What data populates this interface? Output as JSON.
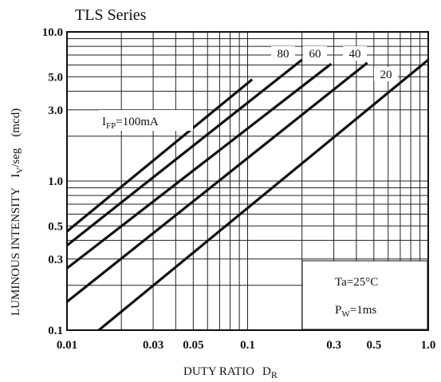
{
  "chart_data": {
    "type": "line",
    "title": "TLS Series",
    "xlabel": {
      "main": "DUTY RATIO",
      "symbol": "D",
      "subscript": "R"
    },
    "ylabel": {
      "main": "LUMINOUS INTENSITY",
      "symbol": "I",
      "subscript": "V",
      "suffix": "/seg",
      "unit": "(mcd)"
    },
    "x_scale": "log",
    "y_scale": "log",
    "xlim": [
      0.01,
      1.0
    ],
    "ylim": [
      0.1,
      10.0
    ],
    "grid": true,
    "x_ticks": [
      {
        "value": 0.01,
        "label": "0.01"
      },
      {
        "value": 0.03,
        "label": "0.03"
      },
      {
        "value": 0.05,
        "label": "0.05"
      },
      {
        "value": 0.1,
        "label": "0.1"
      },
      {
        "value": 0.3,
        "label": "0.3"
      },
      {
        "value": 0.5,
        "label": "0.5"
      },
      {
        "value": 1.0,
        "label": "1.0"
      }
    ],
    "y_ticks": [
      {
        "value": 0.1,
        "label": "0.1"
      },
      {
        "value": 0.3,
        "label": "0.3"
      },
      {
        "value": 0.5,
        "label": "0.5"
      },
      {
        "value": 1.0,
        "label": "1.0"
      },
      {
        "value": 3.0,
        "label": "3.0"
      },
      {
        "value": 5.0,
        "label": "5.0"
      },
      {
        "value": 10.0,
        "label": "10.0"
      }
    ],
    "x_grid": [
      0.01,
      0.02,
      0.03,
      0.04,
      0.05,
      0.06,
      0.07,
      0.08,
      0.09,
      0.1,
      0.2,
      0.3,
      0.4,
      0.5,
      0.6,
      0.7,
      0.8,
      0.9,
      1.0
    ],
    "y_grid": [
      0.1,
      0.2,
      0.3,
      0.4,
      0.5,
      0.6,
      0.7,
      0.8,
      0.9,
      1.0,
      2.0,
      3.0,
      4.0,
      5.0,
      6.0,
      7.0,
      8.0,
      9.0,
      10.0
    ],
    "series": [
      {
        "name": "100mA",
        "label": "I_FP=100mA",
        "points": [
          [
            0.01,
            0.46
          ],
          [
            0.106,
            4.8
          ]
        ]
      },
      {
        "name": "80",
        "label": "80",
        "points": [
          [
            0.01,
            0.37
          ],
          [
            0.2,
            6.5
          ]
        ]
      },
      {
        "name": "60",
        "label": "60",
        "points": [
          [
            0.01,
            0.26
          ],
          [
            0.29,
            6.1
          ]
        ]
      },
      {
        "name": "40",
        "label": "40",
        "points": [
          [
            0.01,
            0.155
          ],
          [
            0.46,
            6.2
          ]
        ]
      },
      {
        "name": "20",
        "label": "20",
        "points": [
          [
            0.015,
            0.1
          ],
          [
            1.0,
            6.5
          ]
        ]
      }
    ],
    "series_labels": [
      {
        "text": "80"
      },
      {
        "text": "60"
      },
      {
        "text": "40"
      },
      {
        "text": "20"
      }
    ],
    "current_label": {
      "symbol": "I",
      "subscript": "FP",
      "value": "=100mA"
    },
    "conditions": [
      {
        "text": "Ta=25°C"
      },
      {
        "symbol": "P",
        "subscript": "W",
        "value": "=1ms"
      }
    ]
  }
}
